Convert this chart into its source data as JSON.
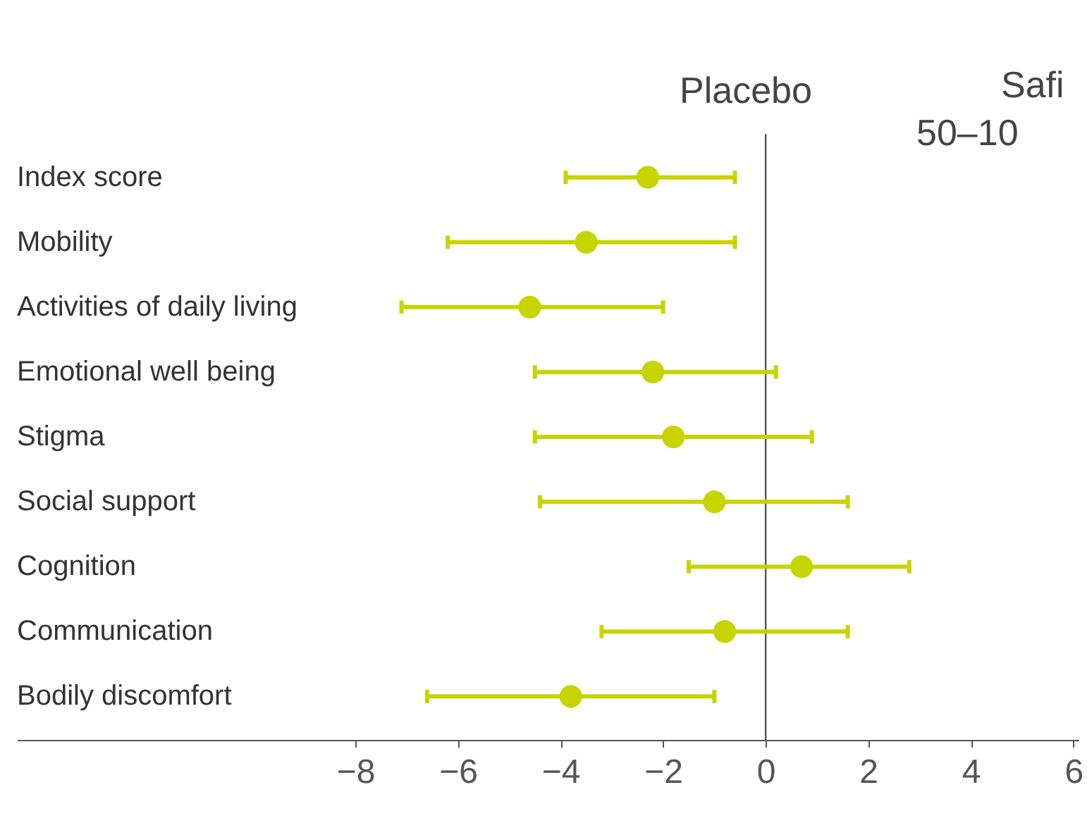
{
  "chart_data": {
    "type": "scatter",
    "categories": [
      "Index score",
      "Mobility",
      "Activities of daily living",
      "Emotional well being",
      "Stigma",
      "Social support",
      "Cognition",
      "Communication",
      "Bodily discomfort"
    ],
    "series": [
      {
        "color": "#c8d400",
        "values": [
          -2.3,
          -3.5,
          -4.6,
          -2.2,
          -1.8,
          -1.0,
          0.7,
          -0.8,
          -3.8
        ],
        "errors": [
          [
            -3.9,
            -0.6
          ],
          [
            -6.2,
            -0.6
          ],
          [
            -7.1,
            -2.0
          ],
          [
            -4.5,
            0.2
          ],
          [
            -4.5,
            0.9
          ],
          [
            -4.4,
            1.6
          ],
          [
            -1.5,
            2.8
          ],
          [
            -3.2,
            1.6
          ],
          [
            -6.6,
            -1.0
          ]
        ]
      }
    ],
    "marker": "circle",
    "xlim": [
      -14.6,
      6.1
    ],
    "xticks": [
      -8,
      -6,
      -4,
      -2,
      0,
      2,
      4,
      6
    ],
    "ref_lines": [
      {
        "axis": "x",
        "value": 0,
        "color": "#555555"
      }
    ],
    "annotations": [
      "Placebo",
      "Safi",
      "50–10"
    ],
    "orientation": "horizontal",
    "grid": false,
    "legend": false
  }
}
